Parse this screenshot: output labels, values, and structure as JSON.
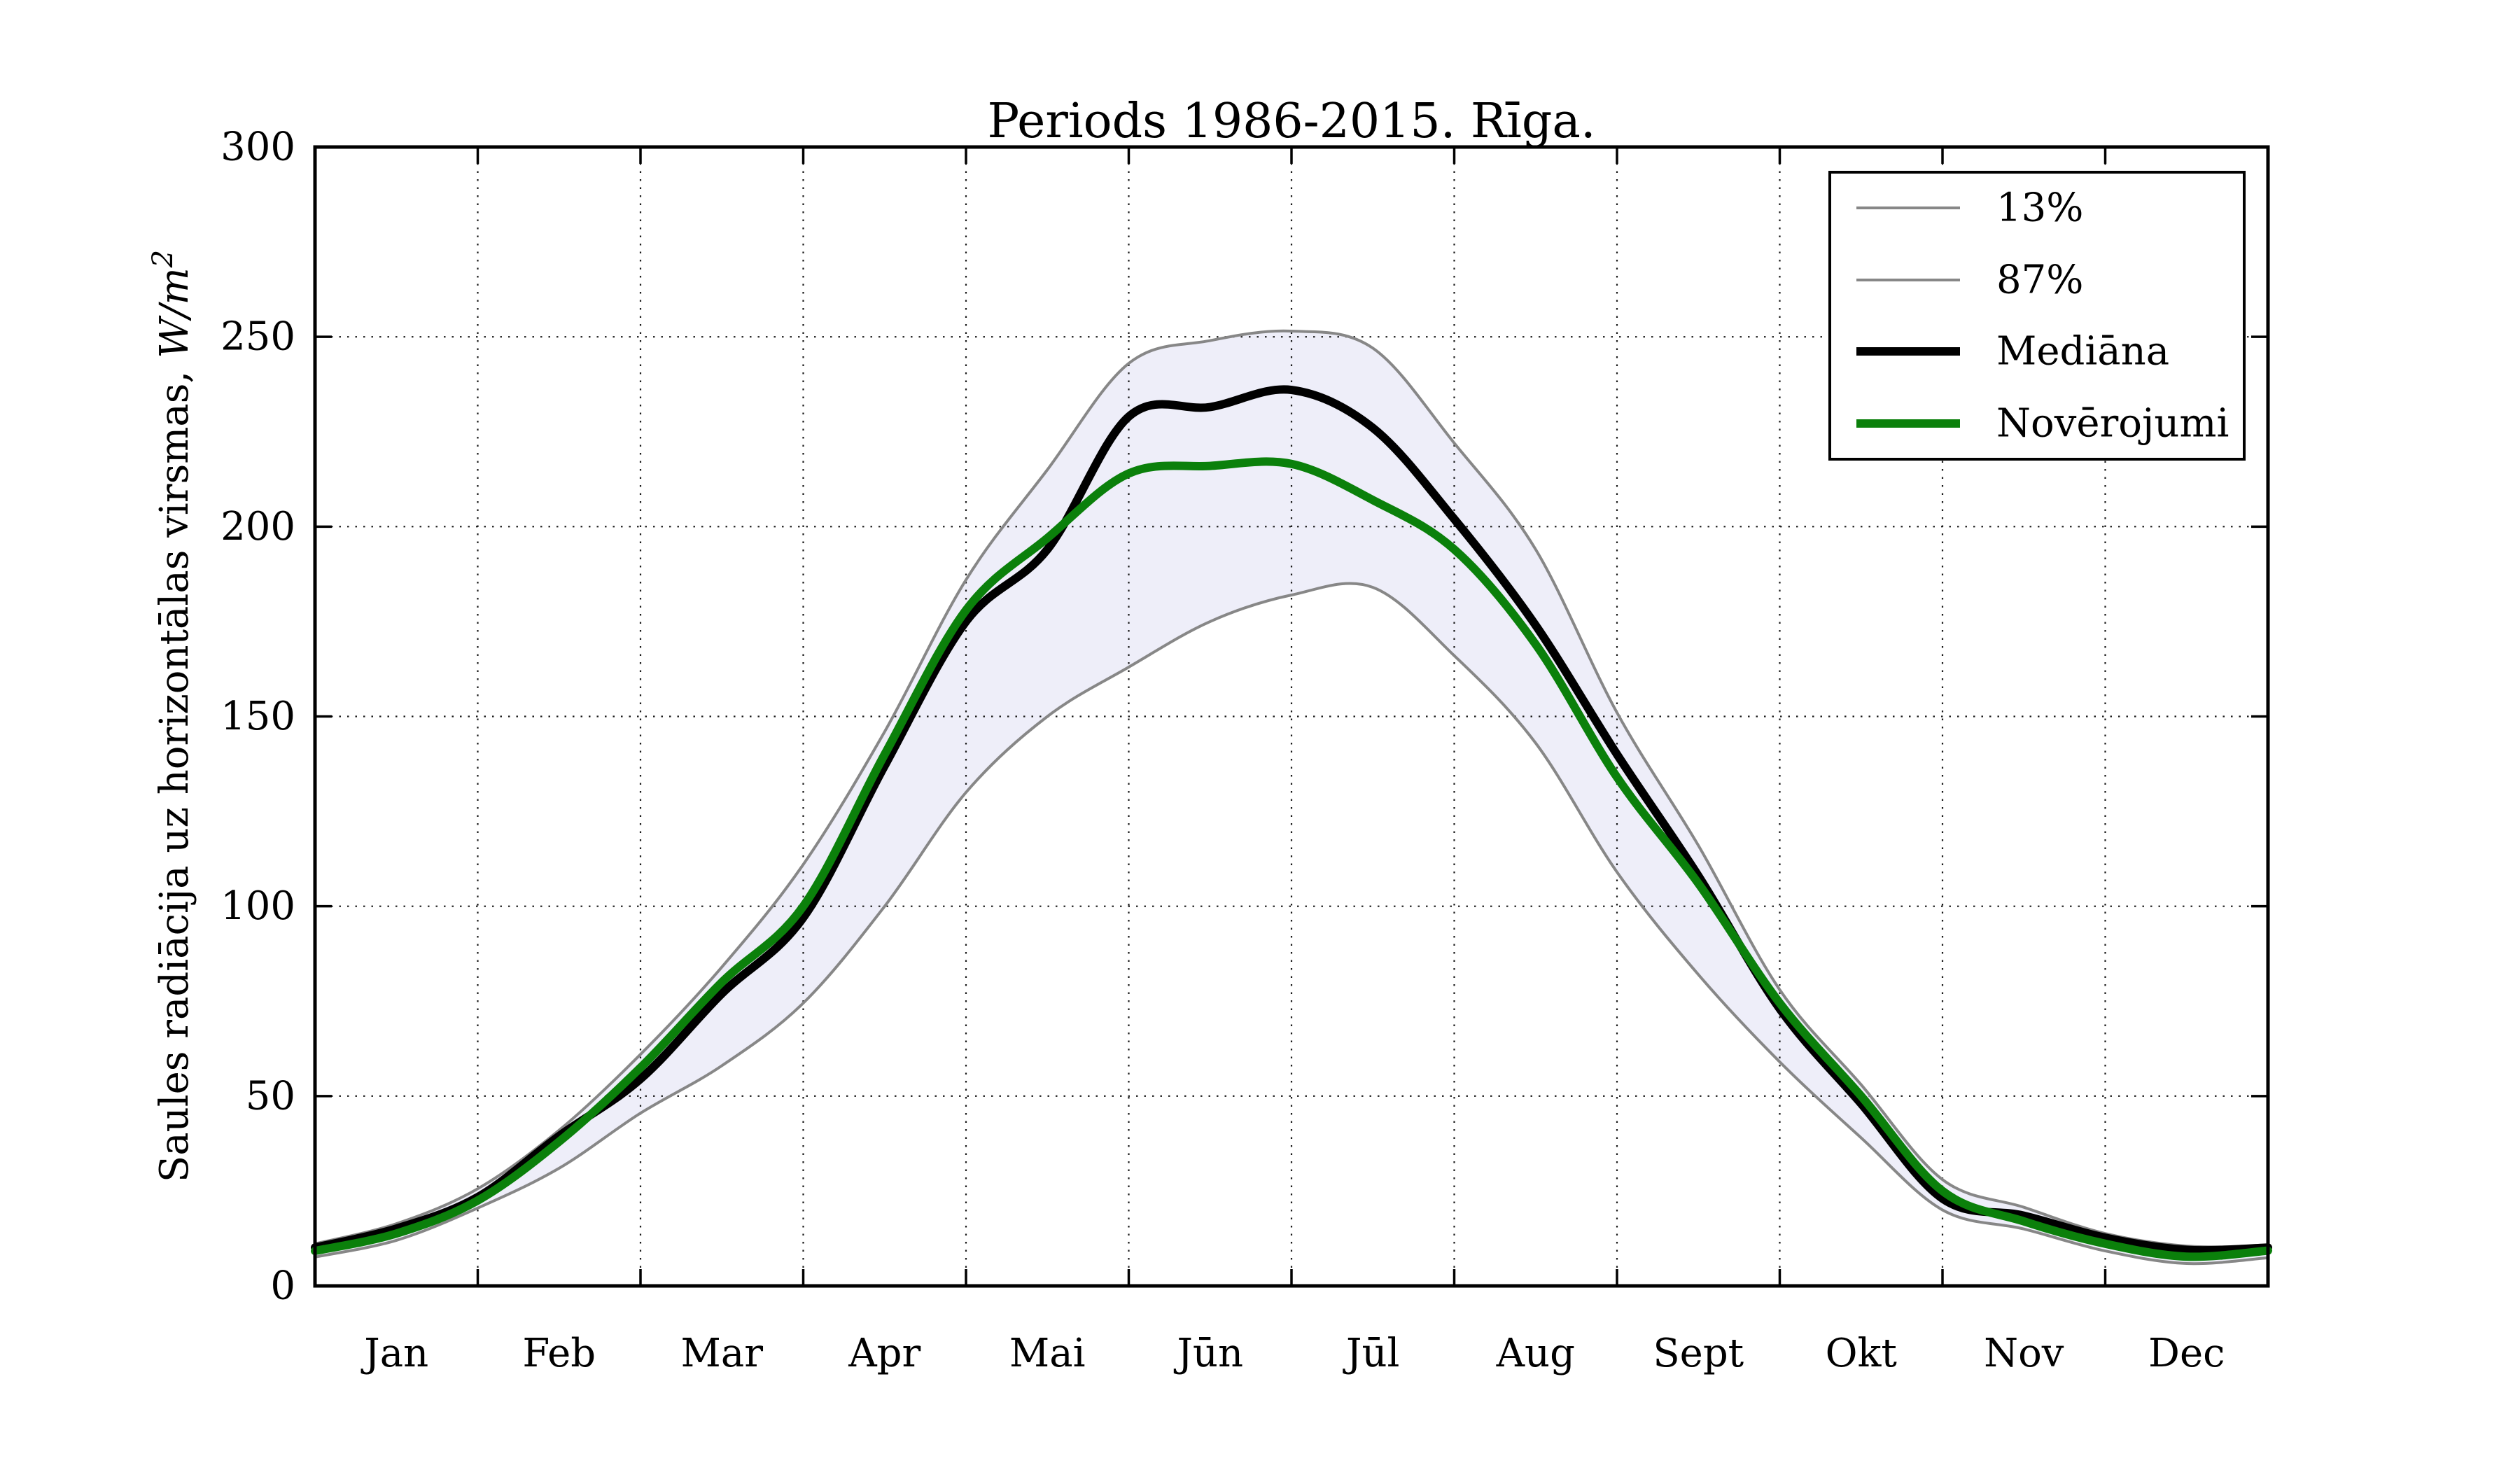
{
  "figure": {
    "title": "Periods 1986-2015. Rīga.",
    "background": "#ffffff",
    "ylabel_prefix": "Saules radiācija uz horizontālas virsmas, ",
    "ylabel_math": "W/m",
    "ylabel_sup": "2"
  },
  "legend": {
    "position": "upper right",
    "entries": [
      {
        "label": "13%",
        "color": "#878787",
        "width": 4
      },
      {
        "label": "87%",
        "color": "#878787",
        "width": 4
      },
      {
        "label": "Mediāna",
        "color": "#000000",
        "width": 12
      },
      {
        "label": "Novērojumi",
        "color": "#0b800b",
        "width": 12
      }
    ]
  },
  "chart_data": {
    "type": "line",
    "title": "Periods 1986-2015. Rīga.",
    "xlabel": "",
    "ylabel": "Saules radiācija uz horizontālas virsmas, W/m²",
    "x_tick_labels": [
      "Jan",
      "Feb",
      "Mar",
      "Apr",
      "Mai",
      "Jūn",
      "Jūl",
      "Aug",
      "Sept",
      "Okt",
      "Nov",
      "Dec"
    ],
    "y_ticks": [
      0,
      50,
      100,
      150,
      200,
      250,
      300
    ],
    "ylim": [
      0,
      300
    ],
    "xlim_months": [
      0,
      12
    ],
    "grid": "dotted",
    "grid_color": "#1a1a1a",
    "legend_position": "upper right",
    "band_fill": "#eeeef9",
    "x": [
      0,
      0.5,
      1,
      1.5,
      2,
      2.5,
      3,
      3.5,
      4,
      4.5,
      5,
      5.5,
      6,
      6.5,
      7,
      7.5,
      8,
      8.5,
      9,
      9.5,
      10,
      10.5,
      11,
      11.5,
      12
    ],
    "series": [
      {
        "name": "13%",
        "color": "#878787",
        "width": 4,
        "values": [
          7.6,
          12,
          20.5,
          31,
          45.5,
          58,
          74.5,
          100,
          130,
          150,
          163,
          175,
          182,
          184,
          166,
          143,
          109,
          82,
          59,
          39,
          20,
          15,
          9.2,
          5.9,
          7.4
        ]
      },
      {
        "name": "87%",
        "color": "#878787",
        "width": 4,
        "values": [
          11.1,
          16.4,
          25.6,
          41,
          61,
          84,
          111,
          146,
          186,
          215,
          243,
          249,
          251.5,
          247,
          222,
          194,
          151,
          116,
          78,
          53,
          28,
          20.7,
          13.8,
          10.5,
          10.5
        ]
      },
      {
        "name": "Mediāna",
        "color": "#000000",
        "width": 12,
        "values": [
          10.1,
          15.1,
          23.4,
          39.5,
          54.5,
          77,
          97,
          137,
          175,
          194,
          229,
          231.5,
          236,
          226,
          202,
          174,
          140,
          108,
          73,
          48,
          23,
          18.5,
          12.7,
          9.5,
          10.1
        ]
      },
      {
        "name": "Novērojumi",
        "color": "#0b800b",
        "width": 12,
        "values": [
          9.2,
          13.8,
          22.5,
          38,
          57.5,
          80,
          100,
          140,
          178,
          197,
          214,
          216,
          216.5,
          207,
          194,
          169,
          134,
          106,
          74.5,
          50,
          25,
          17,
          11.1,
          7.7,
          9.3
        ]
      }
    ],
    "band": {
      "upper": "87%",
      "lower": "13%",
      "fill": "#eeeef9"
    }
  }
}
